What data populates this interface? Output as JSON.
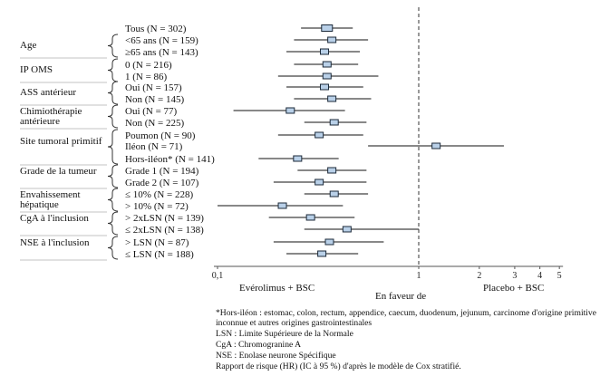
{
  "chart_data": {
    "type": "forest",
    "scale": "log",
    "xlim": [
      0.1,
      5
    ],
    "reference_line": 1,
    "ticks": [
      {
        "value": 0.1,
        "label": "0,1"
      },
      {
        "value": 1,
        "label": "1"
      },
      {
        "value": 2,
        "label": "2"
      },
      {
        "value": 3,
        "label": "3"
      },
      {
        "value": 4,
        "label": "4"
      },
      {
        "value": 5,
        "label": "5"
      }
    ],
    "xlabel_left": "Evérolimus + BSC",
    "xlabel_center": "En faveur de",
    "xlabel_right": "Placebo + BSC",
    "groups": [
      {
        "label": "Age",
        "first": 1,
        "last": 2
      },
      {
        "label": "IP OMS",
        "first": 3,
        "last": 4
      },
      {
        "label": "ASS antérieur",
        "first": 5,
        "last": 6
      },
      {
        "label": "Chimiothérapie antérieure",
        "first": 7,
        "last": 8
      },
      {
        "label": "Site tumoral primitif",
        "first": 9,
        "last": 11
      },
      {
        "label": "Grade de la tumeur",
        "first": 12,
        "last": 13
      },
      {
        "label": "Envahissement hépatique",
        "first": 14,
        "last": 15
      },
      {
        "label": "CgA à l'inclusion",
        "first": 16,
        "last": 17
      },
      {
        "label": "NSE à l'inclusion",
        "first": 18,
        "last": 19
      }
    ],
    "rows": [
      {
        "label": "Tous (N = 302)",
        "hr": 0.35,
        "lo": 0.26,
        "hi": 0.47
      },
      {
        "label": "<65 ans (N = 159)",
        "hr": 0.37,
        "lo": 0.24,
        "hi": 0.56
      },
      {
        "label": "≥65 ans (N = 143)",
        "hr": 0.34,
        "lo": 0.22,
        "hi": 0.51
      },
      {
        "label": "0 (N = 216)",
        "hr": 0.35,
        "lo": 0.24,
        "hi": 0.5
      },
      {
        "label": "1 (N = 86)",
        "hr": 0.35,
        "lo": 0.2,
        "hi": 0.63
      },
      {
        "label": "Oui (N = 157)",
        "hr": 0.34,
        "lo": 0.22,
        "hi": 0.53
      },
      {
        "label": "Non (N = 145)",
        "hr": 0.37,
        "lo": 0.24,
        "hi": 0.58
      },
      {
        "label": "Oui (N = 77)",
        "hr": 0.23,
        "lo": 0.12,
        "hi": 0.43
      },
      {
        "label": "Non (N = 225)",
        "hr": 0.38,
        "lo": 0.27,
        "hi": 0.55
      },
      {
        "label": "Poumon (N = 90)",
        "hr": 0.32,
        "lo": 0.2,
        "hi": 0.53
      },
      {
        "label": "Iléon (N = 71)",
        "hr": 1.22,
        "lo": 0.56,
        "hi": 2.65
      },
      {
        "label": "Hors-iléon* (N = 141)",
        "hr": 0.25,
        "lo": 0.16,
        "hi": 0.4
      },
      {
        "label": "Grade 1 (N = 194)",
        "hr": 0.37,
        "lo": 0.25,
        "hi": 0.55
      },
      {
        "label": "Grade 2 (N = 107)",
        "hr": 0.32,
        "lo": 0.19,
        "hi": 0.55
      },
      {
        "label": "≤ 10% (N = 228)",
        "hr": 0.38,
        "lo": 0.27,
        "hi": 0.56
      },
      {
        "label": "> 10% (N = 72)",
        "hr": 0.21,
        "lo": 0.1,
        "hi": 0.42
      },
      {
        "label": "> 2xLSN (N = 139)",
        "hr": 0.29,
        "lo": 0.18,
        "hi": 0.48
      },
      {
        "label": "≤ 2xLSN (N = 138)",
        "hr": 0.44,
        "lo": 0.27,
        "hi": 1.0
      },
      {
        "label": "> LSN (N = 87)",
        "hr": 0.36,
        "lo": 0.19,
        "hi": 0.67
      },
      {
        "label": "≤ LSN (N = 188)",
        "hr": 0.33,
        "lo": 0.22,
        "hi": 0.5
      }
    ]
  },
  "footnotes": {
    "hors_ileon": "*Hors-iléon : estomac, colon, rectum, appendice, caecum, duodenum, jejunum, carcinome d'origine primitive inconnue et autres origines gastrointestinales",
    "lsn": "LSN : Limite Supérieure de la Normale",
    "cga": "CgA : Chromogranine A",
    "nse": "NSE : Enolase neurone Spécifique",
    "hr": "Rapport de risque (HR) (IC à 95 %) d'après le modèle de Cox stratifié."
  },
  "colors": {
    "box_fill": "#b9d0e8",
    "box_stroke": "#1c2a3a",
    "line": "#111111",
    "axis": "#555555"
  }
}
